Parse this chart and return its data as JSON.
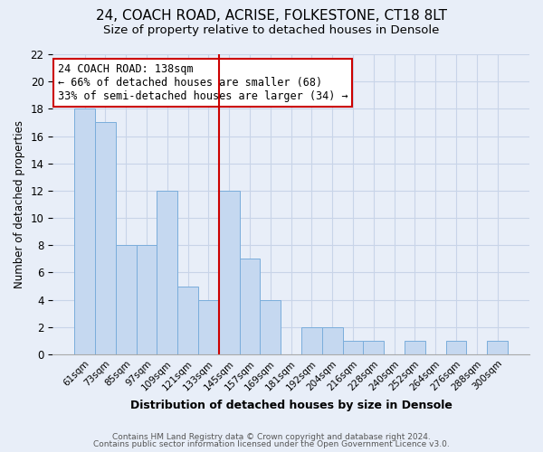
{
  "title": "24, COACH ROAD, ACRISE, FOLKESTONE, CT18 8LT",
  "subtitle": "Size of property relative to detached houses in Densole",
  "xlabel": "Distribution of detached houses by size in Densole",
  "ylabel": "Number of detached properties",
  "bar_labels": [
    "61sqm",
    "73sqm",
    "85sqm",
    "97sqm",
    "109sqm",
    "121sqm",
    "133sqm",
    "145sqm",
    "157sqm",
    "169sqm",
    "181sqm",
    "192sqm",
    "204sqm",
    "216sqm",
    "228sqm",
    "240sqm",
    "252sqm",
    "264sqm",
    "276sqm",
    "288sqm",
    "300sqm"
  ],
  "bar_values": [
    18,
    17,
    8,
    8,
    12,
    5,
    4,
    12,
    7,
    4,
    0,
    2,
    2,
    1,
    1,
    0,
    1,
    0,
    1,
    0,
    1
  ],
  "bar_color": "#c5d8f0",
  "bar_edge_color": "#7aaddb",
  "vline_color": "#cc0000",
  "annotation_title": "24 COACH ROAD: 138sqm",
  "annotation_line1": "← 66% of detached houses are smaller (68)",
  "annotation_line2": "33% of semi-detached houses are larger (34) →",
  "annotation_box_color": "#ffffff",
  "annotation_box_edge": "#cc0000",
  "ylim": [
    0,
    22
  ],
  "yticks": [
    0,
    2,
    4,
    6,
    8,
    10,
    12,
    14,
    16,
    18,
    20,
    22
  ],
  "grid_color": "#c8d4e8",
  "footer_line1": "Contains HM Land Registry data © Crown copyright and database right 2024.",
  "footer_line2": "Contains public sector information licensed under the Open Government Licence v3.0.",
  "background_color": "#e8eef8",
  "title_fontsize": 11,
  "subtitle_fontsize": 9.5,
  "xlabel_fontsize": 9,
  "ylabel_fontsize": 8.5
}
